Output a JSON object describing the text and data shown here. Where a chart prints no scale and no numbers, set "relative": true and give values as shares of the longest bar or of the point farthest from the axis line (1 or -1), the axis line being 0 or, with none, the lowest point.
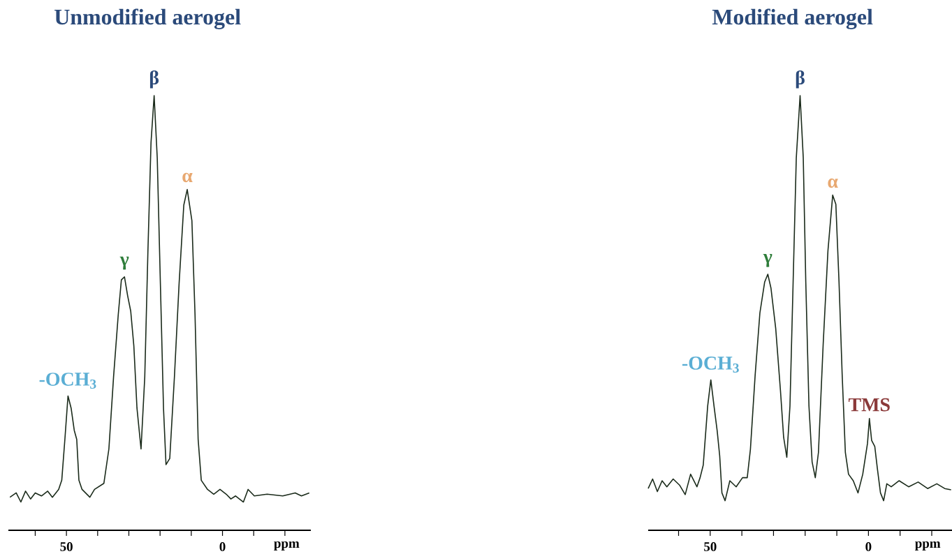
{
  "chart_data": [
    {
      "type": "line",
      "title": "Unmodified aerogel",
      "xlabel": "ppm",
      "relative": true,
      "color": "#1a2a1a",
      "xlim": [
        68.6,
        -28.3
      ],
      "xticks": [
        {
          "value": 60,
          "label": null
        },
        50,
        {
          "value": 40,
          "label": null
        },
        {
          "value": 30,
          "label": null
        },
        {
          "value": 20,
          "label": null
        },
        {
          "value": 10,
          "label": null
        },
        0,
        {
          "value": -10,
          "label": null
        },
        {
          "value": -20,
          "label": null
        }
      ],
      "x": [
        68.1,
        66.1,
        64.6,
        63.1,
        61.5,
        60.0,
        58.0,
        56.0,
        54.5,
        52.5,
        51.5,
        50.5,
        49.5,
        48.5,
        47.5,
        46.7,
        46.0,
        45.0,
        42.5,
        41.0,
        38.0,
        36.4,
        34.9,
        33.4,
        32.4,
        31.4,
        30.4,
        29.4,
        28.4,
        27.4,
        26.1,
        24.9,
        23.9,
        22.9,
        21.9,
        20.9,
        19.9,
        18.9,
        18.1,
        16.9,
        15.4,
        13.9,
        12.4,
        11.3,
        9.8,
        8.8,
        7.8,
        6.8,
        4.8,
        2.8,
        0.8,
        -1.2,
        -2.7,
        -4.2,
        -6.7,
        -8.2,
        -10.2,
        -14.3,
        -19.3,
        -23.3,
        -25.3,
        -27.8
      ],
      "values": [
        0.076,
        0.086,
        0.065,
        0.09,
        0.072,
        0.086,
        0.079,
        0.09,
        0.076,
        0.094,
        0.115,
        0.209,
        0.309,
        0.281,
        0.23,
        0.209,
        0.115,
        0.094,
        0.076,
        0.094,
        0.108,
        0.187,
        0.353,
        0.496,
        0.576,
        0.583,
        0.54,
        0.504,
        0.424,
        0.281,
        0.187,
        0.353,
        0.64,
        0.892,
        1.0,
        0.856,
        0.568,
        0.281,
        0.151,
        0.165,
        0.353,
        0.568,
        0.748,
        0.784,
        0.712,
        0.496,
        0.209,
        0.115,
        0.094,
        0.083,
        0.094,
        0.083,
        0.072,
        0.079,
        0.065,
        0.094,
        0.079,
        0.083,
        0.079,
        0.086,
        0.079,
        0.086
      ],
      "annotations": [
        {
          "text": "-OCH$_{3}$",
          "x": 49.5,
          "y": 0.309
        },
        {
          "text": "γ",
          "x": 31.4,
          "y": 0.583
        },
        {
          "text": "β",
          "x": 21.9,
          "y": 1.0
        },
        {
          "text": "α",
          "x": 11.3,
          "y": 0.784
        }
      ]
    },
    {
      "type": "line",
      "title": "Modified aerogel",
      "xlabel": "ppm",
      "relative": true,
      "color": "#1a2a1a",
      "xlim": [
        69.6,
        -26.4
      ],
      "xticks": [
        {
          "value": 60,
          "label": null
        },
        50,
        {
          "value": 40,
          "label": null
        },
        {
          "value": 30,
          "label": null
        },
        {
          "value": 20,
          "label": null
        },
        {
          "value": 10,
          "label": null
        },
        0,
        {
          "value": -10,
          "label": null
        },
        {
          "value": -20,
          "label": null
        }
      ],
      "x": [
        69.6,
        68.2,
        66.7,
        65.2,
        63.7,
        61.7,
        59.7,
        57.9,
        56.2,
        54.2,
        53.2,
        52.2,
        50.8,
        49.8,
        48.8,
        47.8,
        47.0,
        46.3,
        45.3,
        43.8,
        41.8,
        39.8,
        38.3,
        37.3,
        35.8,
        34.3,
        32.8,
        31.8,
        30.8,
        29.3,
        27.8,
        26.8,
        25.8,
        24.8,
        23.8,
        22.8,
        21.6,
        20.6,
        19.8,
        18.8,
        17.8,
        16.8,
        15.8,
        14.3,
        12.8,
        11.3,
        10.3,
        9.3,
        8.3,
        7.3,
        6.3,
        4.8,
        3.3,
        1.8,
        0.3,
        -0.3,
        -1.0,
        -2.0,
        -2.8,
        -3.8,
        -4.8,
        -5.8,
        -7.2,
        -9.7,
        -12.7,
        -15.7,
        -18.7,
        -21.6,
        -24.1,
        -26.1
      ],
      "values": [
        0.096,
        0.118,
        0.089,
        0.114,
        0.1,
        0.118,
        0.104,
        0.082,
        0.129,
        0.1,
        0.121,
        0.15,
        0.286,
        0.346,
        0.286,
        0.229,
        0.171,
        0.086,
        0.068,
        0.114,
        0.1,
        0.121,
        0.121,
        0.186,
        0.357,
        0.5,
        0.571,
        0.589,
        0.557,
        0.464,
        0.321,
        0.214,
        0.168,
        0.286,
        0.571,
        0.857,
        1.0,
        0.857,
        0.571,
        0.286,
        0.157,
        0.121,
        0.179,
        0.429,
        0.643,
        0.771,
        0.75,
        0.571,
        0.357,
        0.179,
        0.129,
        0.114,
        0.086,
        0.129,
        0.2,
        0.257,
        0.207,
        0.193,
        0.143,
        0.086,
        0.068,
        0.107,
        0.1,
        0.114,
        0.1,
        0.111,
        0.096,
        0.107,
        0.096,
        0.093
      ],
      "annotations": [
        {
          "text": "-OCH$_{3}$",
          "x": 49.8,
          "y": 0.346
        },
        {
          "text": "γ",
          "x": 31.8,
          "y": 0.589
        },
        {
          "text": "β",
          "x": 21.6,
          "y": 1.0
        },
        {
          "text": "α",
          "x": 11.3,
          "y": 0.771
        },
        {
          "text": "TMS",
          "x": -0.3,
          "y": 0.257
        }
      ]
    }
  ]
}
